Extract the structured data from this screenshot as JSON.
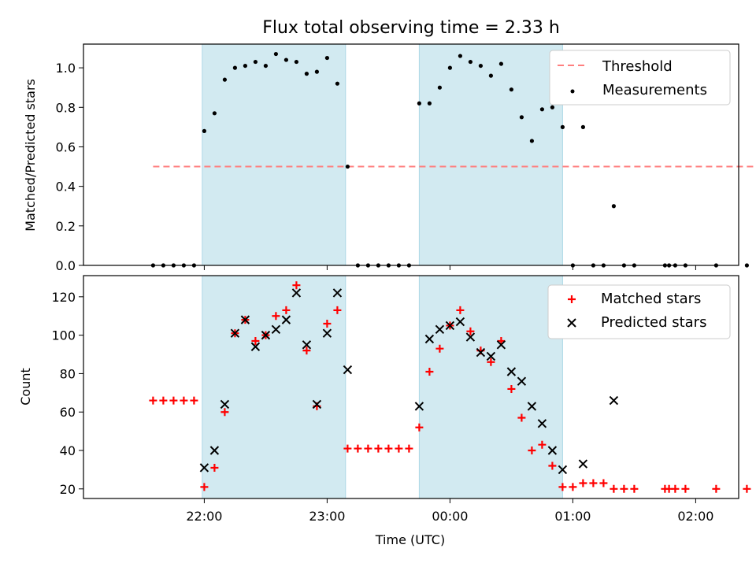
{
  "chart_data": [
    {
      "type": "scatter",
      "title": "Flux total observing time = 2.33 h",
      "xlabel": "",
      "ylabel": "Matched/Predicted stars",
      "xlim_minutes": [
        -59,
        261
      ],
      "ylim": [
        0,
        1.12
      ],
      "yticks": [
        0.0,
        0.2,
        0.4,
        0.6,
        0.8,
        1.0
      ],
      "ytick_labels": [
        "0.0",
        "0.2",
        "0.4",
        "0.6",
        "0.8",
        "1.0"
      ],
      "grid": false,
      "legend_position": "upper right",
      "shaded_intervals": [
        [
          "21:59",
          "23:09"
        ],
        [
          "23:45",
          "00:55"
        ]
      ],
      "threshold": {
        "name": "Threshold",
        "value": 0.5,
        "x_range": [
          "21:35",
          "02:45"
        ],
        "color": "#ff7f7f"
      },
      "series": [
        {
          "name": "Measurements",
          "color": "#000000",
          "points": [
            [
              "21:35",
              0.0
            ],
            [
              "21:40",
              0.0
            ],
            [
              "21:45",
              0.0
            ],
            [
              "21:50",
              0.0
            ],
            [
              "21:55",
              0.0
            ],
            [
              "22:00",
              0.68
            ],
            [
              "22:05",
              0.77
            ],
            [
              "22:10",
              0.94
            ],
            [
              "22:15",
              1.0
            ],
            [
              "22:20",
              1.01
            ],
            [
              "22:25",
              1.03
            ],
            [
              "22:30",
              1.01
            ],
            [
              "22:35",
              1.07
            ],
            [
              "22:40",
              1.04
            ],
            [
              "22:45",
              1.03
            ],
            [
              "22:50",
              0.97
            ],
            [
              "22:55",
              0.98
            ],
            [
              "23:00",
              1.05
            ],
            [
              "23:05",
              0.92
            ],
            [
              "23:10",
              0.5
            ],
            [
              "23:15",
              0.0
            ],
            [
              "23:20",
              0.0
            ],
            [
              "23:25",
              0.0
            ],
            [
              "23:30",
              0.0
            ],
            [
              "23:35",
              0.0
            ],
            [
              "23:40",
              0.0
            ],
            [
              "23:45",
              0.82
            ],
            [
              "23:50",
              0.82
            ],
            [
              "23:55",
              0.9
            ],
            [
              "00:00",
              1.0
            ],
            [
              "00:05",
              1.06
            ],
            [
              "00:10",
              1.03
            ],
            [
              "00:15",
              1.01
            ],
            [
              "00:20",
              0.96
            ],
            [
              "00:25",
              1.02
            ],
            [
              "00:30",
              0.89
            ],
            [
              "00:35",
              0.75
            ],
            [
              "00:40",
              0.63
            ],
            [
              "00:45",
              0.79
            ],
            [
              "00:50",
              0.8
            ],
            [
              "00:55",
              0.7
            ],
            [
              "01:00",
              0.0
            ],
            [
              "01:05",
              0.7
            ],
            [
              "01:10",
              0.0
            ],
            [
              "01:15",
              0.0
            ],
            [
              "01:20",
              0.3
            ],
            [
              "01:25",
              0.0
            ],
            [
              "01:30",
              0.0
            ],
            [
              "01:45",
              0.0
            ],
            [
              "01:47",
              0.0
            ],
            [
              "01:50",
              0.0
            ],
            [
              "01:55",
              0.0
            ],
            [
              "02:10",
              0.0
            ],
            [
              "02:25",
              0.0
            ]
          ]
        }
      ]
    },
    {
      "type": "scatter",
      "title": "",
      "xlabel": "Time (UTC)",
      "ylabel": "Count",
      "xlim_minutes": [
        -59,
        261
      ],
      "ylim": [
        15,
        131
      ],
      "yticks": [
        20,
        40,
        60,
        80,
        100,
        120
      ],
      "ytick_labels": [
        "20",
        "40",
        "60",
        "80",
        "100",
        "120"
      ],
      "xticks": [
        "22:00",
        "23:00",
        "00:00",
        "01:00",
        "02:00"
      ],
      "grid": false,
      "legend_position": "upper right",
      "shaded_intervals": [
        [
          "21:59",
          "23:09"
        ],
        [
          "23:45",
          "00:55"
        ]
      ],
      "series": [
        {
          "name": "Matched stars",
          "marker": "plus",
          "color": "#ff0000",
          "points": [
            [
              "21:35",
              66
            ],
            [
              "21:40",
              66
            ],
            [
              "21:45",
              66
            ],
            [
              "21:50",
              66
            ],
            [
              "21:55",
              66
            ],
            [
              "22:00",
              21
            ],
            [
              "22:05",
              31
            ],
            [
              "22:10",
              60
            ],
            [
              "22:15",
              101
            ],
            [
              "22:20",
              108
            ],
            [
              "22:25",
              97
            ],
            [
              "22:30",
              100
            ],
            [
              "22:35",
              110
            ],
            [
              "22:40",
              113
            ],
            [
              "22:45",
              126
            ],
            [
              "22:50",
              92
            ],
            [
              "22:55",
              63
            ],
            [
              "23:00",
              106
            ],
            [
              "23:05",
              113
            ],
            [
              "23:10",
              41
            ],
            [
              "23:15",
              41
            ],
            [
              "23:20",
              41
            ],
            [
              "23:25",
              41
            ],
            [
              "23:30",
              41
            ],
            [
              "23:35",
              41
            ],
            [
              "23:40",
              41
            ],
            [
              "23:45",
              52
            ],
            [
              "23:50",
              81
            ],
            [
              "23:55",
              93
            ],
            [
              "00:00",
              105
            ],
            [
              "00:05",
              113
            ],
            [
              "00:10",
              102
            ],
            [
              "00:15",
              92
            ],
            [
              "00:20",
              86
            ],
            [
              "00:25",
              97
            ],
            [
              "00:30",
              72
            ],
            [
              "00:35",
              57
            ],
            [
              "00:40",
              40
            ],
            [
              "00:45",
              43
            ],
            [
              "00:50",
              32
            ],
            [
              "00:55",
              21
            ],
            [
              "01:00",
              21
            ],
            [
              "01:05",
              23
            ],
            [
              "01:10",
              23
            ],
            [
              "01:15",
              23
            ],
            [
              "01:20",
              20
            ],
            [
              "01:25",
              20
            ],
            [
              "01:30",
              20
            ],
            [
              "01:45",
              20
            ],
            [
              "01:47",
              20
            ],
            [
              "01:50",
              20
            ],
            [
              "01:55",
              20
            ],
            [
              "02:10",
              20
            ],
            [
              "02:25",
              20
            ]
          ]
        },
        {
          "name": "Predicted stars",
          "marker": "x",
          "color": "#000000",
          "points": [
            [
              "22:00",
              31
            ],
            [
              "22:05",
              40
            ],
            [
              "22:10",
              64
            ],
            [
              "22:15",
              101
            ],
            [
              "22:20",
              108
            ],
            [
              "22:25",
              94
            ],
            [
              "22:30",
              100
            ],
            [
              "22:35",
              103
            ],
            [
              "22:40",
              108
            ],
            [
              "22:45",
              122
            ],
            [
              "22:50",
              95
            ],
            [
              "22:55",
              64
            ],
            [
              "23:00",
              101
            ],
            [
              "23:05",
              122
            ],
            [
              "23:10",
              82
            ],
            [
              "23:45",
              63
            ],
            [
              "23:50",
              98
            ],
            [
              "23:55",
              103
            ],
            [
              "00:00",
              105
            ],
            [
              "00:05",
              107
            ],
            [
              "00:10",
              99
            ],
            [
              "00:15",
              91
            ],
            [
              "00:20",
              89
            ],
            [
              "00:25",
              95
            ],
            [
              "00:30",
              81
            ],
            [
              "00:35",
              76
            ],
            [
              "00:40",
              63
            ],
            [
              "00:45",
              54
            ],
            [
              "00:50",
              40
            ],
            [
              "00:55",
              30
            ],
            [
              "01:05",
              33
            ],
            [
              "01:20",
              66
            ]
          ]
        }
      ]
    }
  ],
  "colors": {
    "shade": "#add8e6"
  }
}
